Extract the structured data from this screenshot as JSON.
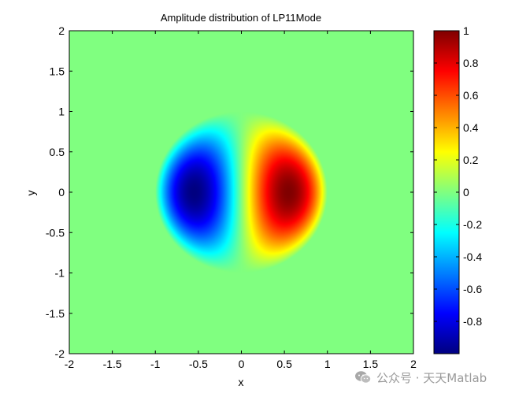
{
  "chart_data": {
    "type": "heatmap",
    "title": "Amplitude distribution of LP11Mode",
    "xlabel": "x",
    "ylabel": "y",
    "xlim": [
      -2,
      2
    ],
    "ylim": [
      -2,
      2
    ],
    "x_ticks": [
      "-2",
      "-1.5",
      "-1",
      "-0.5",
      "0",
      "0.5",
      "1",
      "1.5",
      "2"
    ],
    "y_ticks": [
      "2",
      "1.5",
      "1",
      "0.5",
      "0",
      "-0.5",
      "-1",
      "-1.5",
      "-2"
    ],
    "colormap": "jet",
    "clim": [
      -1,
      1
    ],
    "colorbar": {
      "ticks": [
        "1",
        "0.8",
        "0.6",
        "0.4",
        "0.2",
        "0",
        "-0.2",
        "-0.4",
        "-0.6",
        "-0.8"
      ],
      "tick_values": [
        1,
        0.8,
        0.6,
        0.4,
        0.2,
        0,
        -0.2,
        -0.4,
        -0.6,
        -0.8
      ],
      "range": [
        -1,
        1
      ]
    },
    "field": {
      "description_values": "antisymmetric two-lobe mode, zero outside core",
      "core_radius": 1,
      "positive_lobe_center": [
        0.5,
        0
      ],
      "negative_lobe_center": [
        -0.5,
        0
      ],
      "max": 1,
      "min": -1
    },
    "grid": false
  },
  "watermark": {
    "text": "公众号 · 天天Matlab",
    "icon": "wechat-icon"
  }
}
